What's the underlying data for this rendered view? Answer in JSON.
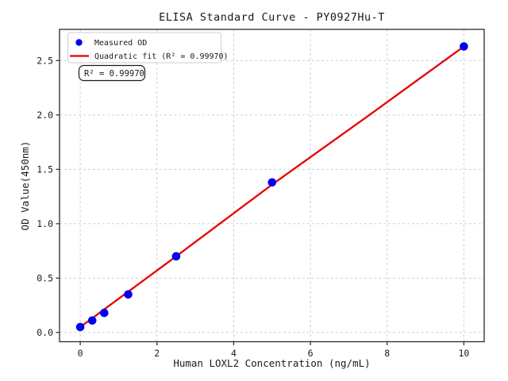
{
  "figure": {
    "title": "ELISA Standard Curve - PY0927Hu-T",
    "xlabel": "Human LOXL2 Concentration (ng/mL)",
    "ylabel": "OD Value(450nm)",
    "annotation": "R² = 0.99970",
    "legend": {
      "measured_label": "Measured OD",
      "fit_label": "Quadratic fit (R² = 0.99970)"
    },
    "colors": {
      "points": "#0000f0",
      "fit_line": "#e60000",
      "grid": "#c9c9c9",
      "spine": "#2a2a2a",
      "text": "#1a1a1a",
      "legend_border": "#cccccc"
    }
  },
  "chart_data": {
    "type": "scatter",
    "title": "ELISA Standard Curve - PY0927Hu-T",
    "xlabel": "Human LOXL2 Concentration (ng/mL)",
    "ylabel": "OD Value(450nm)",
    "xlim": [
      -0.54,
      10.53
    ],
    "ylim": [
      -0.085,
      2.787
    ],
    "xticks": [
      0,
      2,
      4,
      6,
      8,
      10
    ],
    "yticks": [
      0,
      0.5,
      1,
      1.5,
      2,
      2.5
    ],
    "ytick_labels": [
      "0.0",
      "0.5",
      "1.0",
      "1.5",
      "2.0",
      "2.5"
    ],
    "grid": true,
    "grid_style": "dashed",
    "legend_position": "upper-left",
    "series": [
      {
        "name": "Quadratic fit",
        "type": "line",
        "color": "#e60000",
        "r_squared": "0.99970",
        "x": [
          0,
          2.5,
          5,
          7.5,
          10
        ],
        "y": [
          0.05,
          0.7,
          1.36,
          1.99,
          2.63
        ]
      },
      {
        "name": "Measured OD",
        "type": "scatter",
        "color": "#0000f0",
        "x": [
          0,
          0.3125,
          0.625,
          1.25,
          2.5,
          5,
          10
        ],
        "y": [
          0.05,
          0.11,
          0.18,
          0.35,
          0.7,
          1.38,
          2.63
        ]
      }
    ]
  }
}
